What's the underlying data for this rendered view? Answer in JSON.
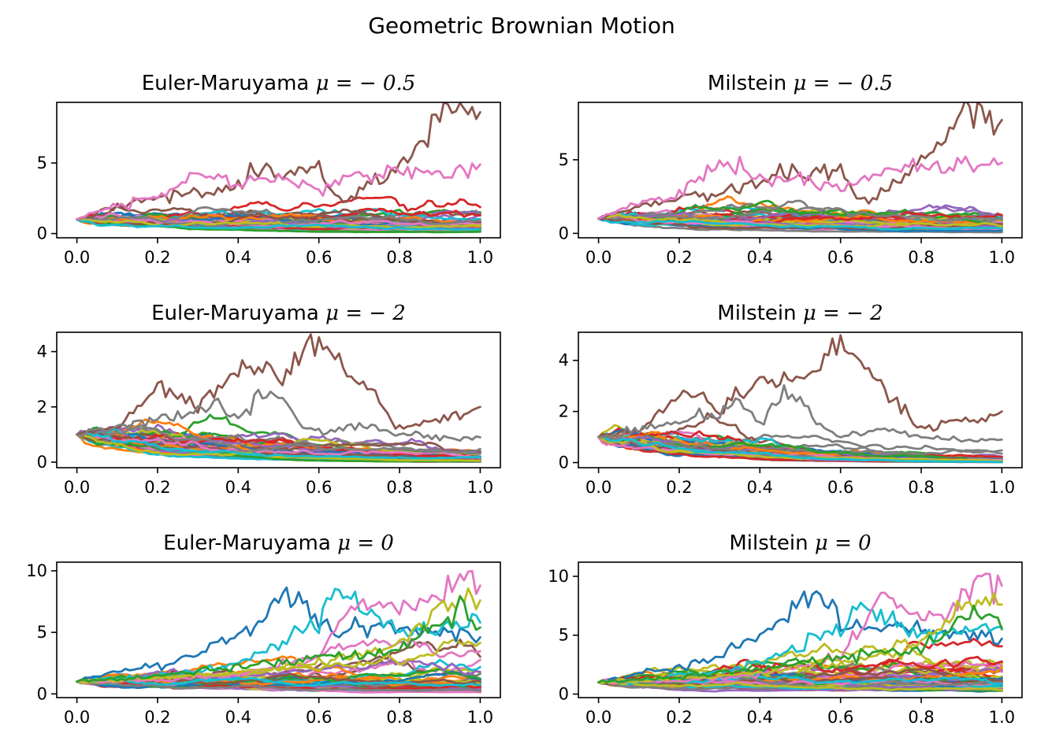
{
  "figure": {
    "suptitle": "Geometric Brownian Motion"
  },
  "palette": [
    "#1f77b4",
    "#ff7f0e",
    "#2ca02c",
    "#d62728",
    "#9467bd",
    "#8c564b",
    "#e377c2",
    "#7f7f7f",
    "#bcbd22",
    "#17becf"
  ],
  "chart_data": [
    {
      "type": "line",
      "title_prefix": "Euler-Maruyama",
      "title_math": "μ = − 0.5",
      "mu": -0.5,
      "x_range": [
        0.0,
        1.0
      ],
      "xlim": [
        -0.05,
        1.05
      ],
      "ylim": [
        -0.3,
        9.3
      ],
      "xticks": [
        0.0,
        0.2,
        0.4,
        0.6,
        0.8,
        1.0
      ],
      "xtick_labels": [
        "0.0",
        "0.2",
        "0.4",
        "0.6",
        "0.8",
        "1.0"
      ],
      "yticks": [
        0,
        5
      ],
      "ytick_labels": [
        "0",
        "5"
      ],
      "y0": 1,
      "n_paths": 50,
      "highlight_paths": [
        {
          "color": "#8c564b",
          "x": [
            0,
            0.1,
            0.2,
            0.3,
            0.4,
            0.45,
            0.5,
            0.55,
            0.6,
            0.65,
            0.7,
            0.75,
            0.8,
            0.85,
            0.9,
            0.95,
            1.0
          ],
          "y": [
            1,
            1.9,
            2.6,
            2.9,
            3.4,
            4.4,
            4.2,
            4.3,
            4.4,
            2.4,
            2.8,
            3.8,
            5.0,
            6.6,
            9.0,
            8.6,
            8.6
          ]
        },
        {
          "color": "#e377c2",
          "x": [
            0,
            0.1,
            0.2,
            0.3,
            0.4,
            0.5,
            0.6,
            0.7,
            0.8,
            0.9,
            1.0
          ],
          "y": [
            1,
            2.0,
            2.6,
            4.3,
            3.6,
            3.9,
            3.0,
            4.1,
            4.5,
            4.2,
            4.9
          ]
        }
      ]
    },
    {
      "type": "line",
      "title_prefix": "Milstein",
      "title_math": "μ = − 0.5",
      "mu": -0.5,
      "x_range": [
        0.0,
        1.0
      ],
      "xlim": [
        -0.05,
        1.05
      ],
      "ylim": [
        -0.3,
        8.9
      ],
      "xticks": [
        0.0,
        0.2,
        0.4,
        0.6,
        0.8,
        1.0
      ],
      "xtick_labels": [
        "0.0",
        "0.2",
        "0.4",
        "0.6",
        "0.8",
        "1.0"
      ],
      "yticks": [
        0,
        5
      ],
      "ytick_labels": [
        "0",
        "5"
      ],
      "y0": 1,
      "n_paths": 50,
      "highlight_paths": [
        {
          "color": "#8c564b",
          "x": [
            0,
            0.1,
            0.2,
            0.3,
            0.4,
            0.45,
            0.5,
            0.55,
            0.6,
            0.65,
            0.7,
            0.75,
            0.8,
            0.85,
            0.9,
            0.95,
            1.0
          ],
          "y": [
            1,
            1.8,
            2.5,
            2.8,
            3.3,
            4.3,
            4.1,
            4.2,
            4.3,
            2.3,
            2.7,
            3.6,
            4.8,
            6.2,
            8.5,
            8.0,
            7.7
          ]
        },
        {
          "color": "#e377c2",
          "x": [
            0,
            0.1,
            0.2,
            0.3,
            0.4,
            0.5,
            0.6,
            0.7,
            0.8,
            0.9,
            1.0
          ],
          "y": [
            1,
            2.0,
            2.5,
            4.8,
            3.7,
            3.8,
            3.0,
            4.1,
            4.6,
            4.3,
            4.8
          ]
        }
      ]
    },
    {
      "type": "line",
      "title_prefix": "Euler-Maruyama",
      "title_math": "μ = − 2",
      "mu": -2,
      "x_range": [
        0.0,
        1.0
      ],
      "xlim": [
        -0.05,
        1.05
      ],
      "ylim": [
        -0.2,
        4.7
      ],
      "xticks": [
        0.0,
        0.2,
        0.4,
        0.6,
        0.8,
        1.0
      ],
      "xtick_labels": [
        "0.0",
        "0.2",
        "0.4",
        "0.6",
        "0.8",
        "1.0"
      ],
      "yticks": [
        0,
        2,
        4
      ],
      "ytick_labels": [
        "0",
        "2",
        "4"
      ],
      "y0": 1,
      "n_paths": 50,
      "highlight_paths": [
        {
          "color": "#8c564b",
          "x": [
            0,
            0.1,
            0.2,
            0.25,
            0.3,
            0.4,
            0.45,
            0.5,
            0.55,
            0.58,
            0.62,
            0.65,
            0.7,
            0.75,
            0.8,
            0.9,
            0.95,
            1.0
          ],
          "y": [
            1,
            1.3,
            2.5,
            2.7,
            2.0,
            3.3,
            3.4,
            3.2,
            3.6,
            4.5,
            4.0,
            3.6,
            3.0,
            2.2,
            1.2,
            1.6,
            1.6,
            2.0
          ]
        },
        {
          "color": "#7f7f7f",
          "x": [
            0,
            0.1,
            0.2,
            0.3,
            0.35,
            0.4,
            0.45,
            0.5,
            0.55,
            0.6,
            0.7,
            0.8,
            0.9,
            1.0
          ],
          "y": [
            1,
            1.3,
            1.6,
            1.8,
            2.2,
            1.5,
            2.4,
            2.6,
            1.4,
            1.0,
            1.3,
            1.0,
            0.9,
            0.9
          ]
        }
      ]
    },
    {
      "type": "line",
      "title_prefix": "Milstein",
      "title_math": "μ = − 2",
      "mu": -2,
      "x_range": [
        0.0,
        1.0
      ],
      "xlim": [
        -0.05,
        1.05
      ],
      "ylim": [
        -0.2,
        5.1
      ],
      "xticks": [
        0.0,
        0.2,
        0.4,
        0.6,
        0.8,
        1.0
      ],
      "xtick_labels": [
        "0.0",
        "0.2",
        "0.4",
        "0.6",
        "0.8",
        "1.0"
      ],
      "yticks": [
        0,
        2,
        4
      ],
      "ytick_labels": [
        "0",
        "2",
        "4"
      ],
      "y0": 1,
      "n_paths": 50,
      "highlight_paths": [
        {
          "color": "#8c564b",
          "x": [
            0,
            0.1,
            0.2,
            0.25,
            0.3,
            0.4,
            0.45,
            0.5,
            0.55,
            0.58,
            0.62,
            0.65,
            0.7,
            0.75,
            0.8,
            0.9,
            0.95,
            1.0
          ],
          "y": [
            1,
            1.3,
            2.5,
            2.7,
            1.9,
            3.4,
            3.5,
            3.3,
            3.8,
            4.9,
            4.3,
            3.8,
            3.1,
            2.3,
            1.3,
            1.7,
            1.7,
            2.0
          ]
        },
        {
          "color": "#7f7f7f",
          "x": [
            0,
            0.1,
            0.2,
            0.3,
            0.35,
            0.4,
            0.45,
            0.5,
            0.55,
            0.6,
            0.7,
            0.8,
            0.9,
            1.0
          ],
          "y": [
            1,
            1.3,
            1.6,
            1.9,
            2.3,
            1.6,
            2.5,
            2.5,
            1.4,
            1.0,
            1.3,
            1.0,
            0.9,
            0.9
          ]
        }
      ]
    },
    {
      "type": "line",
      "title_prefix": "Euler-Maruyama",
      "title_math": "μ = 0",
      "mu": 0,
      "x_range": [
        0.0,
        1.0
      ],
      "xlim": [
        -0.05,
        1.05
      ],
      "ylim": [
        -0.3,
        10.7
      ],
      "xticks": [
        0.0,
        0.2,
        0.4,
        0.6,
        0.8,
        1.0
      ],
      "xtick_labels": [
        "0.0",
        "0.2",
        "0.4",
        "0.6",
        "0.8",
        "1.0"
      ],
      "yticks": [
        0,
        5,
        10
      ],
      "ytick_labels": [
        "0",
        "5",
        "10"
      ],
      "y0": 1,
      "n_paths": 50,
      "highlight_paths": [
        {
          "color": "#1f77b4",
          "x": [
            0,
            0.1,
            0.2,
            0.3,
            0.4,
            0.45,
            0.5,
            0.55,
            0.6,
            0.65,
            0.7,
            0.8,
            0.9,
            1.0
          ],
          "y": [
            1,
            1.8,
            2.2,
            3.3,
            4.9,
            5.8,
            7.8,
            7.8,
            5.8,
            5.0,
            5.5,
            5.2,
            5.0,
            4.6
          ]
        },
        {
          "color": "#17becf",
          "x": [
            0,
            0.1,
            0.2,
            0.3,
            0.4,
            0.5,
            0.55,
            0.6,
            0.64,
            0.7,
            0.8,
            0.9,
            1.0
          ],
          "y": [
            1,
            1.2,
            1.5,
            1.8,
            2.6,
            4.0,
            5.5,
            5.2,
            8.9,
            7.0,
            5.2,
            5.5,
            5.8
          ]
        },
        {
          "color": "#e377c2",
          "x": [
            0,
            0.2,
            0.4,
            0.6,
            0.7,
            0.8,
            0.85,
            0.9,
            0.95,
            1.0
          ],
          "y": [
            1,
            1.1,
            1.6,
            3.0,
            7.9,
            6.5,
            7.0,
            7.9,
            10.2,
            8.8
          ]
        },
        {
          "color": "#bcbd22",
          "x": [
            0,
            0.2,
            0.4,
            0.6,
            0.8,
            0.85,
            0.9,
            0.95,
            1.0
          ],
          "y": [
            1,
            1.3,
            1.8,
            2.5,
            4.0,
            5.5,
            7.2,
            7.9,
            7.6
          ]
        },
        {
          "color": "#2ca02c",
          "x": [
            0,
            0.2,
            0.4,
            0.6,
            0.8,
            0.9,
            0.95,
            1.0
          ],
          "y": [
            1,
            1.4,
            2.2,
            2.9,
            3.6,
            6.0,
            7.0,
            5.4
          ]
        }
      ]
    },
    {
      "type": "line",
      "title_prefix": "Milstein",
      "title_math": "μ = 0",
      "mu": 0,
      "x_range": [
        0.0,
        1.0
      ],
      "xlim": [
        -0.05,
        1.05
      ],
      "ylim": [
        -0.3,
        11.2
      ],
      "xticks": [
        0.0,
        0.2,
        0.4,
        0.6,
        0.8,
        1.0
      ],
      "xtick_labels": [
        "0.0",
        "0.2",
        "0.4",
        "0.6",
        "0.8",
        "1.0"
      ],
      "yticks": [
        0,
        5,
        10
      ],
      "ytick_labels": [
        "0",
        "5",
        "10"
      ],
      "y0": 1,
      "n_paths": 50,
      "highlight_paths": [
        {
          "color": "#1f77b4",
          "x": [
            0,
            0.1,
            0.2,
            0.3,
            0.4,
            0.45,
            0.5,
            0.55,
            0.6,
            0.65,
            0.7,
            0.8,
            0.9,
            1.0
          ],
          "y": [
            1,
            1.8,
            2.3,
            3.4,
            5.0,
            5.8,
            7.9,
            8.3,
            6.0,
            5.3,
            5.6,
            5.3,
            5.1,
            4.7
          ]
        },
        {
          "color": "#17becf",
          "x": [
            0,
            0.1,
            0.2,
            0.3,
            0.4,
            0.5,
            0.55,
            0.6,
            0.65,
            0.7,
            0.8,
            0.9,
            1.0
          ],
          "y": [
            1,
            1.2,
            1.5,
            1.9,
            2.7,
            4.1,
            5.2,
            5.5,
            7.2,
            6.9,
            5.1,
            5.4,
            5.7
          ]
        },
        {
          "color": "#e377c2",
          "x": [
            0,
            0.2,
            0.4,
            0.6,
            0.7,
            0.8,
            0.85,
            0.9,
            0.95,
            1.0
          ],
          "y": [
            1,
            1.1,
            1.6,
            3.1,
            8.4,
            6.4,
            7.0,
            7.8,
            10.6,
            9.2
          ]
        },
        {
          "color": "#bcbd22",
          "x": [
            0,
            0.2,
            0.4,
            0.6,
            0.8,
            0.85,
            0.9,
            0.95,
            1.0
          ],
          "y": [
            1,
            1.3,
            1.8,
            2.6,
            4.2,
            5.6,
            7.4,
            8.0,
            7.6
          ]
        },
        {
          "color": "#2ca02c",
          "x": [
            0,
            0.2,
            0.4,
            0.6,
            0.8,
            0.9,
            0.95,
            1.0
          ],
          "y": [
            1,
            1.4,
            2.2,
            3.0,
            3.8,
            6.3,
            7.5,
            5.5
          ]
        }
      ]
    }
  ]
}
